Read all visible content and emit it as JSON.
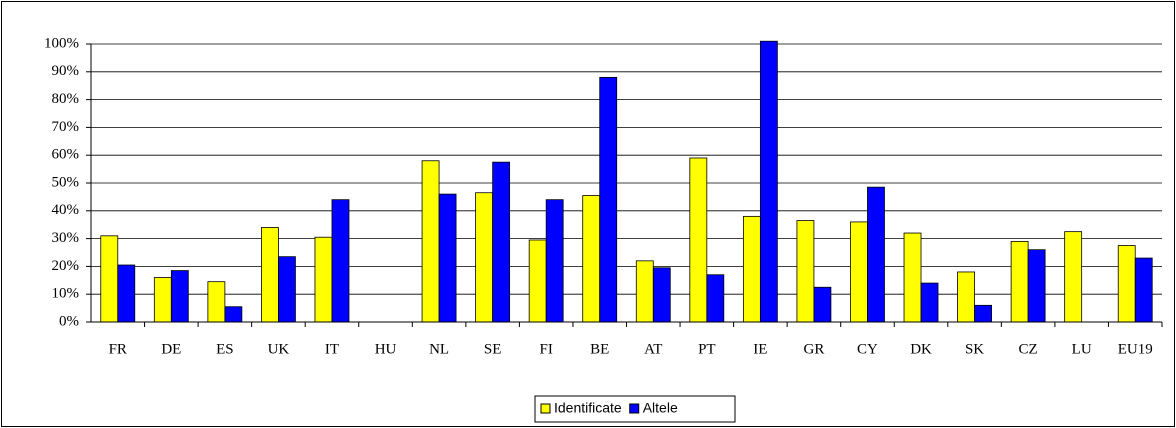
{
  "chart_data": {
    "type": "bar",
    "categories": [
      "FR",
      "DE",
      "ES",
      "UK",
      "IT",
      "HU",
      "NL",
      "SE",
      "FI",
      "BE",
      "AT",
      "PT",
      "IE",
      "GR",
      "CY",
      "DK",
      "SK",
      "CZ",
      "LU",
      "EU19"
    ],
    "series": [
      {
        "name": "Identificate",
        "color": "#ffff00",
        "values": [
          31,
          16,
          14.5,
          34,
          30.5,
          0,
          58,
          46.5,
          29.5,
          45.5,
          22,
          59,
          38,
          36.5,
          36,
          32,
          18,
          29,
          32.5,
          27.5
        ]
      },
      {
        "name": "Altele",
        "color": "#0000ff",
        "values": [
          20.5,
          18.5,
          5.5,
          23.5,
          44,
          0,
          46,
          57.5,
          44,
          88,
          19.5,
          17,
          101,
          12.5,
          48.5,
          14,
          6,
          26,
          0,
          23
        ]
      }
    ],
    "ylim": [
      0,
      100
    ],
    "yticks": [
      {
        "value": 0,
        "label": "0%"
      },
      {
        "value": 10,
        "label": "10%"
      },
      {
        "value": 20,
        "label": "20%"
      },
      {
        "value": 30,
        "label": "30%"
      },
      {
        "value": 40,
        "label": "40%"
      },
      {
        "value": 50,
        "label": "50%"
      },
      {
        "value": 60,
        "label": "60%"
      },
      {
        "value": 70,
        "label": "70%"
      },
      {
        "value": 80,
        "label": "80%"
      },
      {
        "value": 90,
        "label": "90%"
      },
      {
        "value": 100,
        "label": "100%"
      }
    ],
    "grid": true,
    "legend": "bottom"
  }
}
